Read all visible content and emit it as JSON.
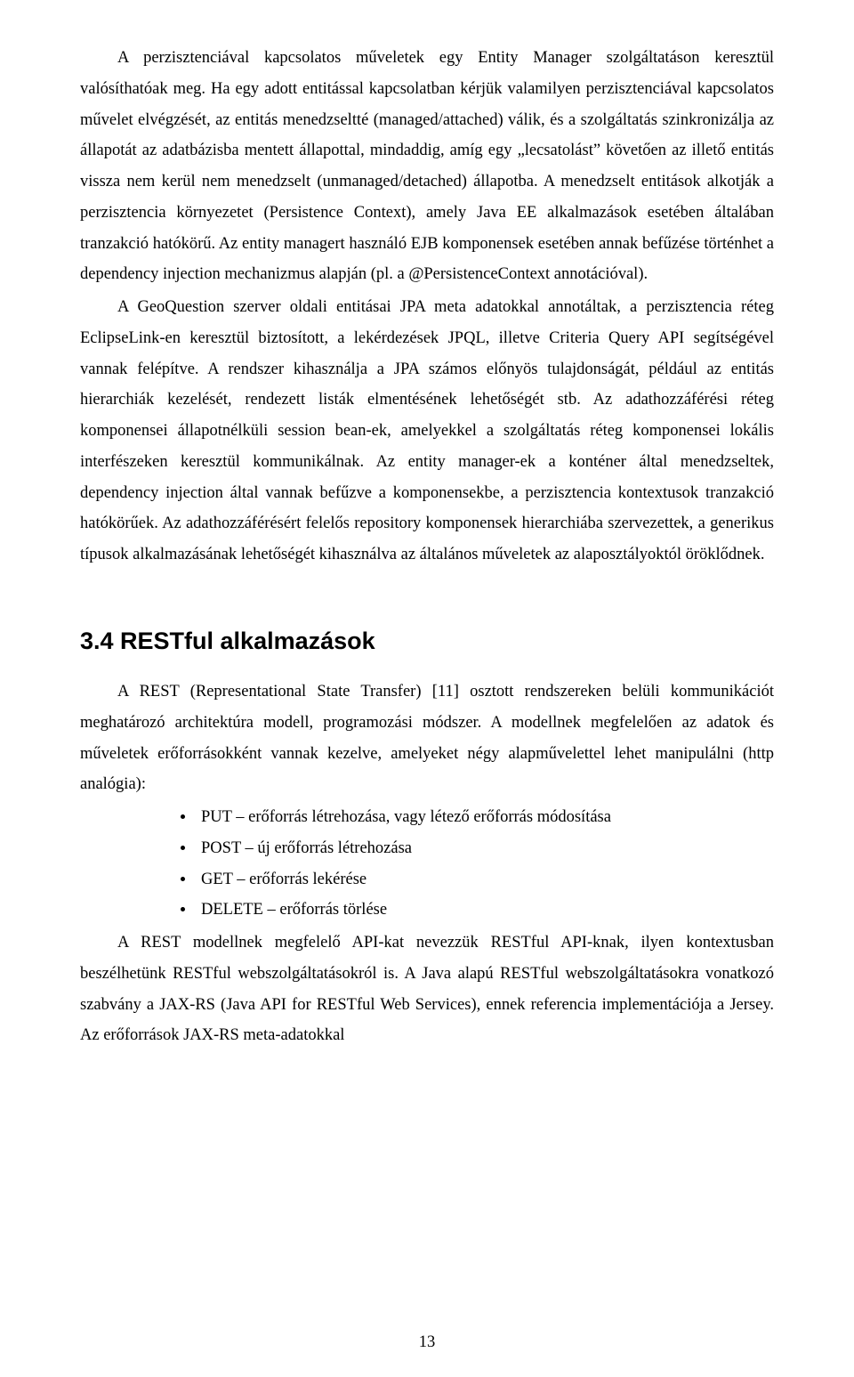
{
  "p1": "A perzisztenciával kapcsolatos műveletek egy Entity Manager szolgáltatáson keresztül valósíthatóak meg. Ha egy adott entitással kapcsolatban kérjük valamilyen perzisztenciával kapcsolatos művelet elvégzését, az entitás menedzseltté (managed/attached) válik, és a szolgáltatás szinkronizálja az állapotát az adatbázisba mentett állapottal, mindaddig, amíg egy „lecsatolást” követően az illető entitás vissza nem kerül nem menedzselt (unmanaged/detached) állapotba. A menedzselt entitások alkotják a perzisztencia környezetet (Persistence Context), amely Java EE alkalmazások esetében általában tranzakció hatókörű. Az entity managert használó EJB komponensek esetében annak befűzése történhet a dependency injection mechanizmus alapján (pl. a @PersistenceContext annotációval).",
  "p2": "A GeoQuestion szerver oldali entitásai JPA meta adatokkal annotáltak, a perzisztencia réteg EclipseLink-en keresztül biztosított, a lekérdezések JPQL, illetve Criteria Query API segítségével vannak felépítve. A rendszer kihasználja a JPA számos előnyös tulajdonságát, például az entitás hierarchiák kezelését, rendezett listák elmentésének lehetőségét stb. Az adathozzáférési réteg komponensei állapotnélküli session bean-ek, amelyekkel a szolgáltatás réteg komponensei lokális interfészeken keresztül kommunikálnak. Az entity manager-ek a konténer által menedzseltek, dependency injection által vannak befűzve a komponensekbe, a perzisztencia kontextusok tranzakció hatókörűek. Az adathozzáférésért felelős repository komponensek hierarchiába szervezettek, a generikus típusok alkalmazásának lehetőségét kihasználva az általános műveletek az alaposztályoktól öröklődnek.",
  "heading": "3.4 RESTful alkalmazások",
  "p3": "A REST (Representational State Transfer) [11] osztott rendszereken belüli kommunikációt meghatározó architektúra modell, programozási módszer. A modellnek megfelelően az adatok és műveletek erőforrásokként vannak kezelve, amelyeket négy alapművelettel lehet manipulálni (http analógia):",
  "bullets": [
    "PUT – erőforrás létrehozása, vagy létező erőforrás módosítása",
    "POST – új erőforrás létrehozása",
    "GET – erőforrás lekérése",
    "DELETE – erőforrás törlése"
  ],
  "p4": "A REST modellnek megfelelő API-kat nevezzük RESTful API-knak, ilyen kontextusban beszélhetünk RESTful webszolgáltatásokról is. A Java alapú RESTful webszolgáltatásokra vonatkozó szabvány a JAX-RS (Java API for RESTful Web Services), ennek referencia implementációja a Jersey. Az erőforrások JAX-RS meta-adatokkal",
  "pageNumber": "13"
}
